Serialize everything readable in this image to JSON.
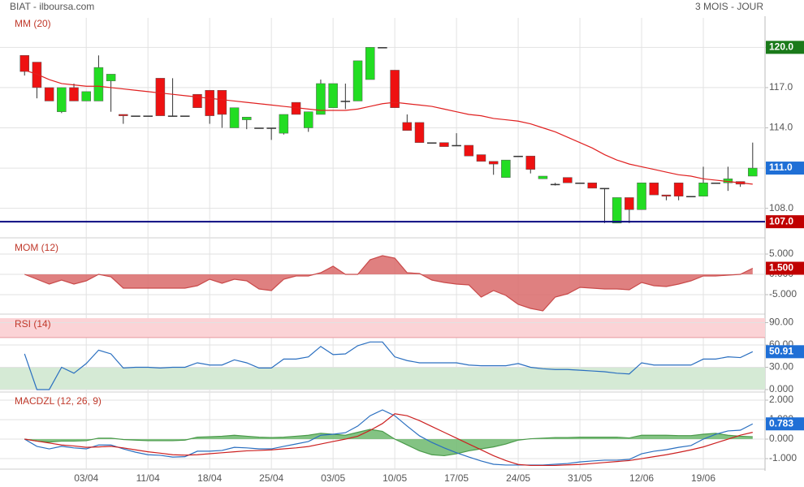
{
  "header": {
    "source": "BIAT - ilboursa.com",
    "period": "3 MOIS - JOUR"
  },
  "chart_data": [
    {
      "type": "candlestick",
      "title": "MM (20)",
      "xlim": [
        -1.2,
        60
      ],
      "ylim": [
        105.8,
        122.2
      ],
      "yticks": [
        {
          "value": 108,
          "label": "108.0"
        },
        {
          "value": 111,
          "label": "111.0"
        },
        {
          "value": 114,
          "label": "114.0"
        },
        {
          "value": 117,
          "label": "117.0"
        },
        {
          "value": 120,
          "label": "120.0"
        }
      ],
      "up_color": "#22dd22",
      "down_color": "#ee1111",
      "open": [
        119.4,
        118.9,
        117.0,
        115.2,
        117.0,
        116.0,
        116.0,
        117.5,
        115.0,
        114.9,
        114.9,
        117.7,
        114.9,
        114.9,
        116.5,
        116.8,
        116.8,
        114.0,
        114.6,
        114.0,
        114.0,
        113.6,
        115.9,
        114.0,
        115.0,
        115.5,
        116.0,
        116.0,
        117.6,
        120.0,
        118.3,
        114.4,
        114.4,
        112.9,
        112.9,
        112.7,
        112.7,
        112.0,
        111.5,
        110.3,
        111.9,
        111.9,
        110.2,
        109.8,
        110.3,
        109.9,
        109.9,
        109.5,
        106.9,
        108.8,
        107.9,
        109.9,
        109.0,
        109.9,
        108.9,
        108.9,
        109.9,
        109.9,
        110.0,
        110.4
      ],
      "high": [
        119.4,
        118.9,
        117.0,
        117.0,
        117.3,
        116.7,
        119.4,
        118.0,
        115.0,
        114.9,
        114.9,
        117.7,
        117.7,
        114.9,
        116.5,
        116.8,
        116.8,
        115.5,
        114.8,
        114.0,
        114.0,
        115.0,
        115.9,
        115.2,
        117.6,
        117.3,
        117.3,
        119.0,
        120.0,
        120.0,
        118.3,
        115.0,
        114.4,
        112.9,
        112.9,
        113.6,
        112.7,
        112.0,
        111.5,
        111.6,
        111.9,
        111.9,
        110.4,
        109.9,
        110.3,
        109.9,
        109.9,
        109.5,
        108.8,
        108.8,
        109.9,
        109.9,
        109.0,
        109.9,
        108.9,
        111.1,
        109.9,
        111.1,
        110.0,
        112.9
      ],
      "low": [
        117.9,
        116.2,
        116.0,
        115.1,
        116.0,
        116.0,
        116.0,
        115.2,
        114.3,
        114.9,
        114.9,
        114.9,
        114.9,
        114.9,
        115.5,
        114.3,
        114.0,
        114.0,
        113.9,
        114.0,
        113.1,
        113.5,
        115.0,
        113.7,
        115.0,
        115.5,
        115.4,
        116.0,
        117.6,
        120.0,
        115.5,
        113.8,
        112.9,
        112.9,
        112.6,
        112.7,
        111.9,
        111.5,
        110.5,
        110.3,
        111.9,
        110.6,
        110.2,
        109.7,
        109.9,
        109.9,
        109.5,
        106.9,
        106.9,
        106.9,
        107.9,
        109.0,
        108.6,
        108.6,
        108.9,
        108.9,
        109.9,
        109.3,
        109.6,
        110.4
      ],
      "close": [
        118.2,
        117.0,
        116.0,
        117.0,
        116.0,
        116.7,
        118.5,
        118.0,
        114.9,
        114.9,
        114.9,
        114.9,
        114.9,
        114.9,
        115.5,
        114.9,
        115.0,
        115.5,
        114.8,
        114.0,
        114.0,
        115.0,
        115.0,
        115.2,
        117.3,
        117.3,
        116.0,
        119.0,
        120.0,
        120.0,
        115.5,
        113.8,
        112.9,
        112.9,
        112.6,
        112.7,
        111.9,
        111.5,
        111.3,
        111.6,
        111.9,
        110.9,
        110.4,
        109.8,
        109.9,
        109.9,
        109.5,
        109.5,
        108.8,
        107.9,
        109.9,
        109.0,
        108.9,
        108.9,
        108.9,
        109.9,
        109.9,
        110.2,
        109.8,
        111.0
      ],
      "series": [
        {
          "color": "#e02020",
          "values": [
            118.3,
            118.0,
            117.6,
            117.3,
            117.2,
            117.1,
            117.1,
            117.0,
            116.9,
            116.8,
            116.7,
            116.6,
            116.5,
            116.4,
            116.3,
            116.2,
            116.1,
            116.0,
            115.9,
            115.8,
            115.7,
            115.6,
            115.5,
            115.4,
            115.3,
            115.3,
            115.3,
            115.4,
            115.6,
            115.8,
            115.9,
            115.8,
            115.7,
            115.6,
            115.4,
            115.2,
            115.0,
            114.9,
            114.7,
            114.6,
            114.5,
            114.3,
            114.0,
            113.7,
            113.3,
            112.9,
            112.5,
            112.0,
            111.6,
            111.3,
            111.1,
            110.9,
            110.7,
            110.5,
            110.4,
            110.2,
            110.1,
            110.0,
            109.9,
            109.8
          ]
        }
      ],
      "markers": [
        {
          "value": 120,
          "label": "120.0",
          "color": "#1a7a1a"
        },
        {
          "value": 111,
          "label": "111.0",
          "color": "#1f6fd6"
        },
        {
          "value": 107,
          "label": "107.0",
          "color": "#c00000",
          "line": "#0a0a80"
        }
      ]
    },
    {
      "type": "area",
      "title": "MOM (12)",
      "xlim": [
        -1.2,
        60
      ],
      "ylim": [
        -9.8,
        8
      ],
      "yticks": [
        {
          "value": -5,
          "label": "-5.000"
        },
        {
          "value": 0,
          "label": "0.000"
        },
        {
          "value": 5,
          "label": "5.000"
        }
      ],
      "series": [
        {
          "color": "#c94a4a",
          "fill": "#d96a6a",
          "values": [
            0,
            -1.2,
            -2.4,
            -1.4,
            -2.4,
            -1.6,
            0,
            -0.6,
            -3.4,
            -3.4,
            -3.4,
            -3.4,
            -3.4,
            -3.4,
            -2.8,
            -1.2,
            -2.2,
            -1.2,
            -1.6,
            -3.6,
            -4,
            -1.2,
            -0.4,
            -0.4,
            0.4,
            2,
            0,
            0,
            3.6,
            4.6,
            4,
            0.4,
            0.2,
            -1.4,
            -2,
            -2.4,
            -2.6,
            -5.6,
            -4,
            -5.2,
            -7.4,
            -8.4,
            -9,
            -5.6,
            -4.8,
            -3.2,
            -3.4,
            -3.6,
            -3.6,
            -3.8,
            -2,
            -2.8,
            -3,
            -2.4,
            -1.6,
            -0.4,
            -0.4,
            -0.2,
            0,
            1.5
          ]
        }
      ],
      "markers": [
        {
          "value": 1.5,
          "label": "1.500",
          "color": "#c00000"
        }
      ]
    },
    {
      "type": "line",
      "title": "RSI (14)",
      "xlim": [
        -1.2,
        60
      ],
      "ylim": [
        -3.3,
        96
      ],
      "yticks": [
        {
          "value": 0,
          "label": "0.000"
        },
        {
          "value": 30,
          "label": "30.00"
        },
        {
          "value": 60,
          "label": "60.00"
        },
        {
          "value": 90,
          "label": "90.00"
        }
      ],
      "zones": [
        {
          "from": 70,
          "to": 100,
          "color": "#fbd3d6",
          "edge": "#e89aa0"
        },
        {
          "from": 0,
          "to": 30,
          "color": "#d5ead5",
          "edge": "#4a9a4a"
        }
      ],
      "series": [
        {
          "color": "#2a6fc0",
          "values": [
            48,
            0,
            0,
            30,
            22,
            35,
            53,
            48,
            29,
            30,
            30,
            29,
            30,
            30,
            36,
            33,
            33,
            40,
            36,
            29,
            29,
            41,
            41,
            44,
            58,
            47,
            48,
            59,
            64,
            64,
            44,
            39,
            36,
            36,
            36,
            36,
            33,
            32,
            32,
            32,
            35,
            30,
            28,
            27,
            27,
            26,
            25,
            24,
            22,
            21,
            36,
            33,
            33,
            33,
            33,
            41,
            41,
            44,
            43,
            50.91
          ]
        }
      ],
      "markers": [
        {
          "value": 50.91,
          "label": "50.91",
          "color": "#1f6fd6"
        }
      ]
    },
    {
      "type": "line",
      "title": "MACDZL (12, 26, 9)",
      "xlim": [
        -1.2,
        60
      ],
      "ylim": [
        -1.54,
        2.25
      ],
      "yticks": [
        {
          "value": -1,
          "label": "-1.000"
        },
        {
          "value": 0,
          "label": "0.000"
        },
        {
          "value": 1,
          "label": "1.000"
        },
        {
          "value": 2,
          "label": "2.000"
        }
      ],
      "xticks": [
        {
          "value": 5,
          "label": "03/04"
        },
        {
          "value": 10,
          "label": "11/04"
        },
        {
          "value": 15,
          "label": "18/04"
        },
        {
          "value": 20,
          "label": "25/04"
        },
        {
          "value": 25,
          "label": "03/05"
        },
        {
          "value": 30,
          "label": "10/05"
        },
        {
          "value": 35,
          "label": "17/05"
        },
        {
          "value": 40,
          "label": "24/05"
        },
        {
          "value": 45,
          "label": "31/05"
        },
        {
          "value": 50,
          "label": "12/06"
        },
        {
          "value": 55,
          "label": "19/06"
        }
      ],
      "series": [
        {
          "color": "#4a9a4a",
          "fill": "#6db86d",
          "values": [
            0,
            -0.1,
            -0.15,
            -0.1,
            -0.1,
            -0.08,
            0.05,
            0.05,
            -0.02,
            -0.05,
            -0.08,
            -0.08,
            -0.08,
            -0.05,
            0.1,
            0.12,
            0.15,
            0.2,
            0.15,
            0.1,
            0.08,
            0.1,
            0.15,
            0.2,
            0.3,
            0.25,
            0.2,
            0.35,
            0.5,
            0.4,
            0,
            -0.3,
            -0.6,
            -0.8,
            -0.85,
            -0.75,
            -0.6,
            -0.5,
            -0.4,
            -0.25,
            -0.05,
            0.02,
            0.05,
            0.08,
            0.08,
            0.1,
            0.1,
            0.1,
            0.1,
            0.06,
            0.2,
            0.2,
            0.2,
            0.18,
            0.18,
            0.25,
            0.3,
            0.2,
            0.15,
            0.12
          ]
        },
        {
          "color": "#2a6fc0",
          "values": [
            0,
            -0.37,
            -0.5,
            -0.37,
            -0.45,
            -0.5,
            -0.3,
            -0.3,
            -0.5,
            -0.67,
            -0.8,
            -0.83,
            -0.92,
            -0.9,
            -0.62,
            -0.62,
            -0.58,
            -0.42,
            -0.45,
            -0.5,
            -0.5,
            -0.37,
            -0.25,
            -0.12,
            0.2,
            0.25,
            0.33,
            0.67,
            1.2,
            1.5,
            1.2,
            0.67,
            0.17,
            -0.17,
            -0.45,
            -0.7,
            -0.92,
            -1.12,
            -1.29,
            -1.33,
            -1.33,
            -1.33,
            -1.33,
            -1.29,
            -1.25,
            -1.17,
            -1.12,
            -1.08,
            -1.08,
            -1.04,
            -0.75,
            -0.62,
            -0.54,
            -0.42,
            -0.33,
            0,
            0.25,
            0.42,
            0.46,
            0.783
          ]
        },
        {
          "color": "#cc2020",
          "values": [
            0,
            -0.1,
            -0.2,
            -0.3,
            -0.35,
            -0.42,
            -0.4,
            -0.37,
            -0.45,
            -0.55,
            -0.65,
            -0.72,
            -0.8,
            -0.82,
            -0.8,
            -0.75,
            -0.7,
            -0.65,
            -0.6,
            -0.58,
            -0.55,
            -0.5,
            -0.45,
            -0.38,
            -0.25,
            -0.12,
            0,
            0.15,
            0.45,
            0.8,
            1.3,
            1.2,
            0.95,
            0.65,
            0.35,
            0.05,
            -0.25,
            -0.55,
            -0.85,
            -1.1,
            -1.3,
            -1.35,
            -1.35,
            -1.35,
            -1.32,
            -1.3,
            -1.25,
            -1.2,
            -1.15,
            -1.1,
            -1.0,
            -0.9,
            -0.8,
            -0.68,
            -0.55,
            -0.4,
            -0.2,
            0,
            0.2,
            0.35
          ]
        }
      ],
      "markers": [
        {
          "value": 0.783,
          "label": "0.783",
          "color": "#1f6fd6"
        }
      ]
    }
  ]
}
